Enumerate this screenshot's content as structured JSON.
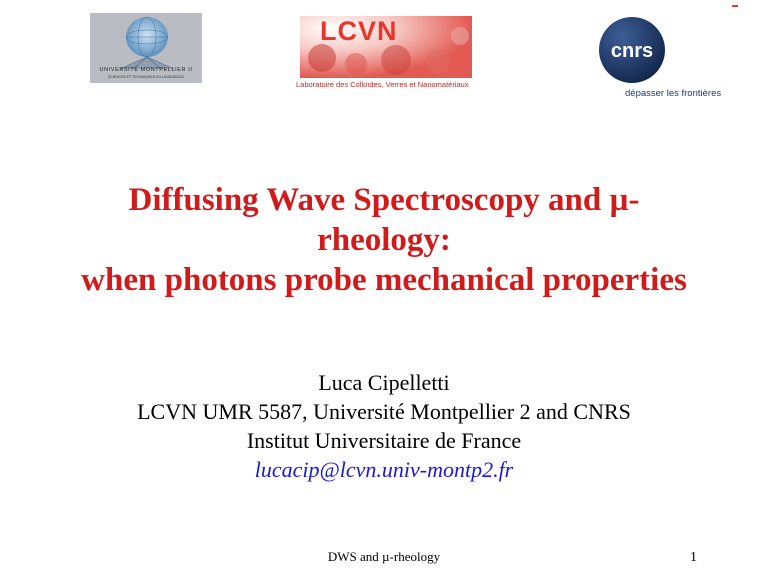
{
  "logos": {
    "um": {
      "name": "UNIVERSITÉ MONTPELLIER II",
      "sub": "SCIENCES ET TECHNIQUES DU LANGUEDOC"
    },
    "lcvn": {
      "name": "LCVN",
      "sub": "Laboratoire des Colloïdes, Verres et Nanomatériaux"
    },
    "cnrs": {
      "name": "cnrs",
      "sub": "dépasser les frontières"
    }
  },
  "title": {
    "line1": "Diffusing Wave Spectroscopy and µ-",
    "line2": "rheology:",
    "line3": "when photons probe mechanical properties"
  },
  "author": {
    "name": "Luca Cipelletti",
    "affiliation": "LCVN UMR 5587, Université Montpellier 2 and CNRS",
    "institute": "Institut Universitaire de France",
    "email": "lucacip@lcvn.univ-montp2.fr"
  },
  "footer": {
    "text": "DWS and µ-rheology",
    "page": "1"
  },
  "colors": {
    "title": "#d11a1a",
    "email": "#1a1ad6",
    "lcvn": "#e8352e",
    "cnrs": "#1f3a6b"
  }
}
